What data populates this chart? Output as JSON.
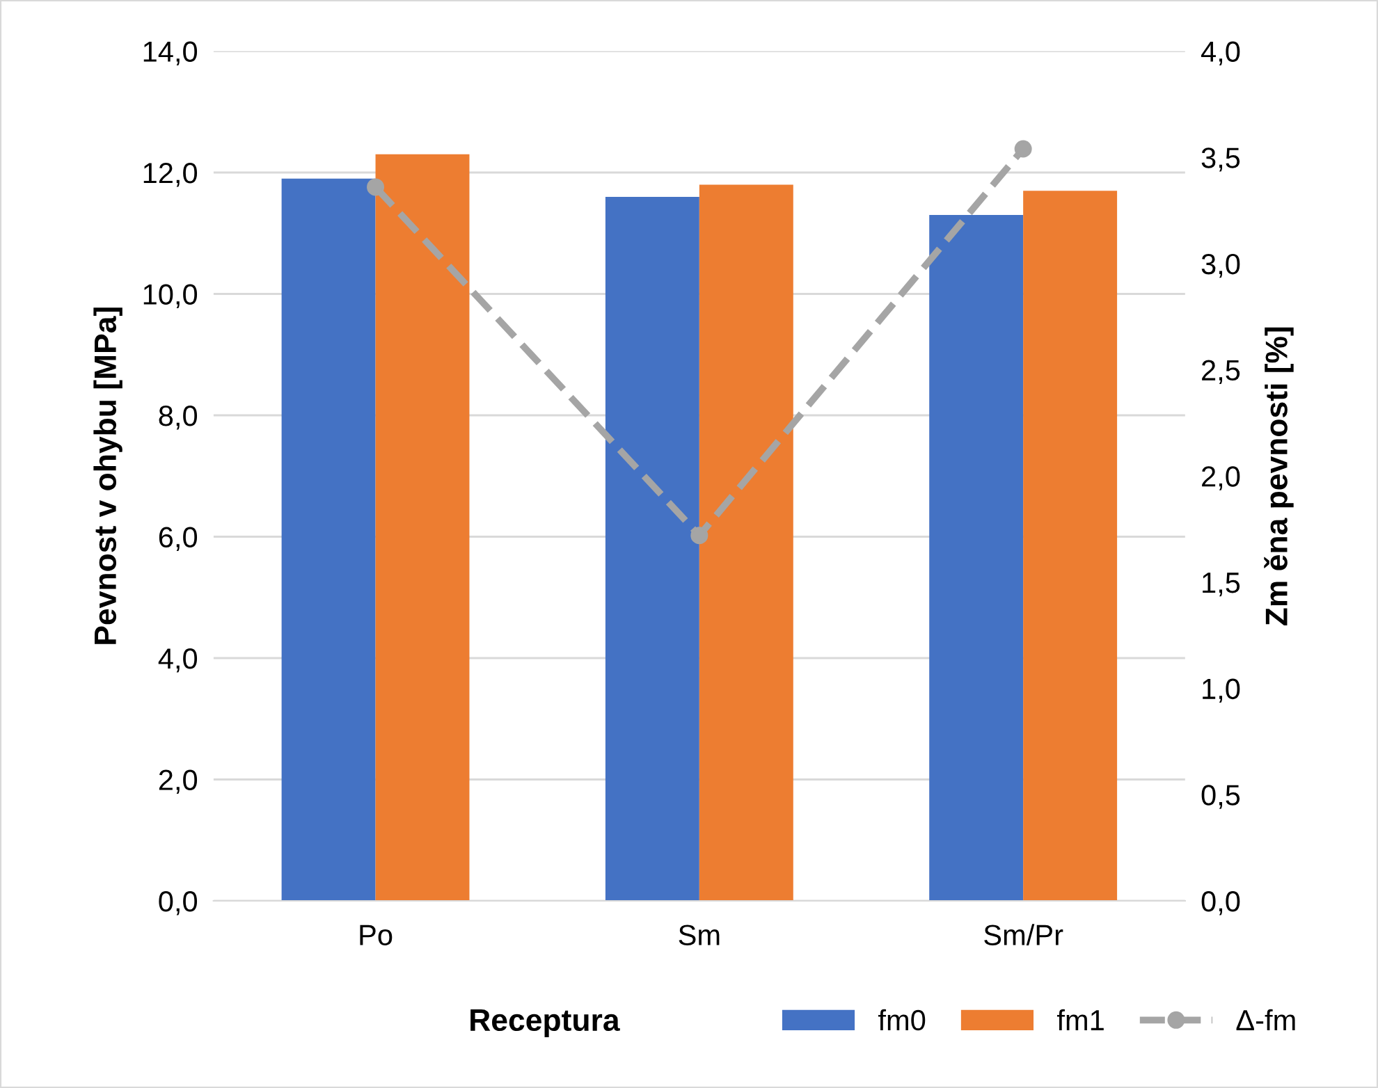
{
  "chart_data": {
    "type": "bar",
    "xlabel": "Receptura",
    "ylabel": "Pevnost v ohybu [MPa]",
    "y2label": "Zm ěna pevnosti [%]",
    "categories": [
      "Po",
      "Sm",
      "Sm/Pr"
    ],
    "series": [
      {
        "name": "fm0",
        "color": "#4472c4",
        "values": [
          11.9,
          11.6,
          11.3
        ]
      },
      {
        "name": "fm1",
        "color": "#ed7d31",
        "values": [
          12.3,
          11.8,
          11.7
        ]
      },
      {
        "name": "Δ-fm",
        "type": "line",
        "axis": "y2",
        "color": "#a5a5a5",
        "values": [
          3.36,
          1.72,
          3.54
        ],
        "marker": "circle",
        "line_style": "dashed"
      }
    ],
    "ylim": [
      0,
      14
    ],
    "yticks": [
      {
        "value": 0,
        "label": "0,0"
      },
      {
        "value": 2,
        "label": "2,0"
      },
      {
        "value": 4,
        "label": "4,0"
      },
      {
        "value": 6,
        "label": "6,0"
      },
      {
        "value": 8,
        "label": "8,0"
      },
      {
        "value": 10,
        "label": "10,0"
      },
      {
        "value": 12,
        "label": "12,0"
      },
      {
        "value": 14,
        "label": "14,0"
      }
    ],
    "y2lim": [
      0,
      4
    ],
    "y2ticks": [
      {
        "value": 0,
        "label": "0,0"
      },
      {
        "value": 0.5,
        "label": "0,5"
      },
      {
        "value": 1,
        "label": "1,0"
      },
      {
        "value": 1.5,
        "label": "1,5"
      },
      {
        "value": 2,
        "label": "2,0"
      },
      {
        "value": 2.5,
        "label": "2,5"
      },
      {
        "value": 3,
        "label": "3,0"
      },
      {
        "value": 3.5,
        "label": "3,5"
      },
      {
        "value": 4,
        "label": "4,0"
      }
    ],
    "grid": "y",
    "legend": "bottom right"
  }
}
